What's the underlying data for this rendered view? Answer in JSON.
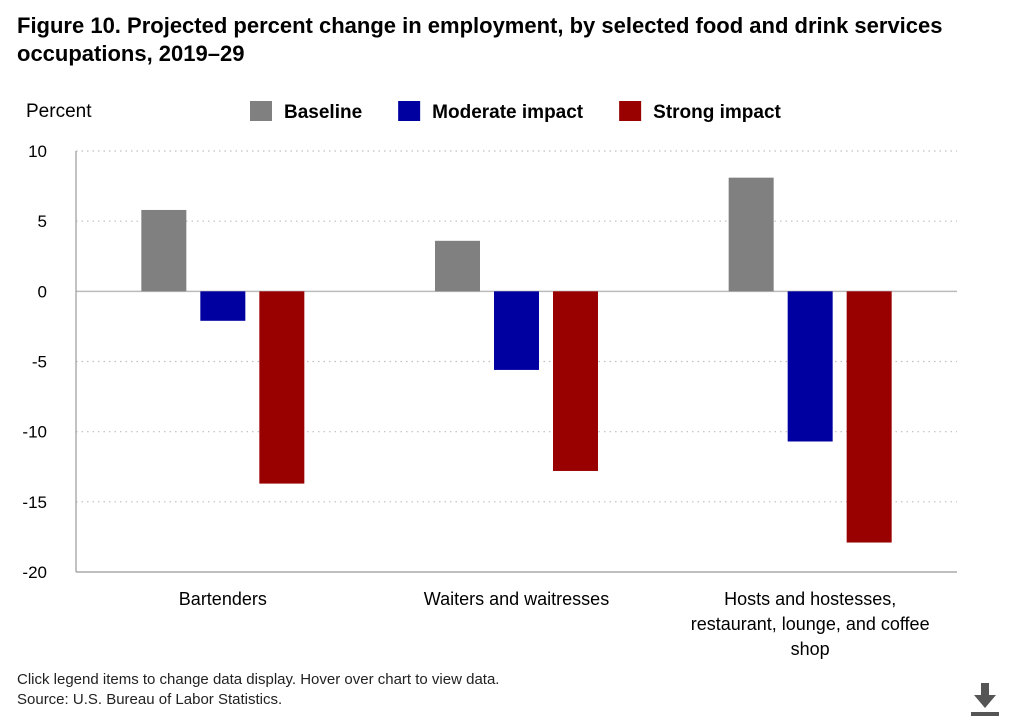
{
  "title": "Figure 10. Projected percent change in employment, by selected food and drink services occupations, 2019–29",
  "footer": {
    "note": "Click legend items to change data display. Hover over chart to view data.",
    "source": "Source: U.S. Bureau of Labor Statistics."
  },
  "icons": {
    "download": "download-icon"
  },
  "chart_data": {
    "type": "bar",
    "ylabel": "Percent",
    "ylim": [
      -20,
      10
    ],
    "yticks": [
      10,
      5,
      0,
      -5,
      -10,
      -15,
      -20
    ],
    "grid": true,
    "legend_position": "top",
    "categories": [
      [
        "Bartenders"
      ],
      [
        "Waiters and waitresses"
      ],
      [
        "Hosts and hostesses,",
        "restaurant, lounge, and coffee",
        "shop"
      ]
    ],
    "series": [
      {
        "name": "Baseline",
        "color": "#808080",
        "values": [
          5.8,
          3.6,
          8.1
        ]
      },
      {
        "name": "Moderate impact",
        "color": "#0000a0",
        "values": [
          -2.1,
          -5.6,
          -10.7
        ]
      },
      {
        "name": "Strong impact",
        "color": "#990000",
        "values": [
          -13.7,
          -12.8,
          -17.9
        ]
      }
    ]
  }
}
